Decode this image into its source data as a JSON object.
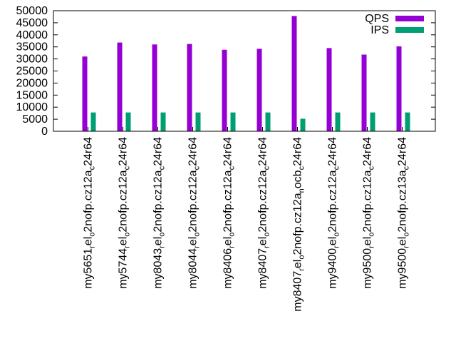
{
  "chart_data": {
    "type": "bar",
    "title": "",
    "xlabel": "",
    "ylabel": "",
    "ylim": [
      0,
      50000
    ],
    "yticks": [
      0,
      5000,
      10000,
      15000,
      20000,
      25000,
      30000,
      35000,
      40000,
      45000,
      50000
    ],
    "ytick_labels": [
      "0",
      "5000",
      "10000",
      "15000",
      "20000",
      "25000",
      "30000",
      "35000",
      "40000",
      "45000",
      "50000"
    ],
    "legend_position": "top-right",
    "categories": [
      [
        {
          "t": "my5651"
        },
        {
          "t": "r",
          "sub": true
        },
        {
          "t": "el"
        },
        {
          "t": "o",
          "sub": true
        },
        {
          "t": "2nofp.cz12a"
        },
        {
          "t": "c",
          "sub": true
        },
        {
          "t": "24r64"
        }
      ],
      [
        {
          "t": "my5744"
        },
        {
          "t": "r",
          "sub": true
        },
        {
          "t": "el"
        },
        {
          "t": "o",
          "sub": true
        },
        {
          "t": "2nofp.cz12a"
        },
        {
          "t": "c",
          "sub": true
        },
        {
          "t": "24r64"
        }
      ],
      [
        {
          "t": "my8043"
        },
        {
          "t": "r",
          "sub": true
        },
        {
          "t": "el"
        },
        {
          "t": "o",
          "sub": true
        },
        {
          "t": "2nofp.cz12a"
        },
        {
          "t": "c",
          "sub": true
        },
        {
          "t": "24r64"
        }
      ],
      [
        {
          "t": "my8044"
        },
        {
          "t": "r",
          "sub": true
        },
        {
          "t": "el"
        },
        {
          "t": "o",
          "sub": true
        },
        {
          "t": "2nofp.cz12a"
        },
        {
          "t": "c",
          "sub": true
        },
        {
          "t": "24r64"
        }
      ],
      [
        {
          "t": "my8406"
        },
        {
          "t": "r",
          "sub": true
        },
        {
          "t": "el"
        },
        {
          "t": "o",
          "sub": true
        },
        {
          "t": "2nofp.cz12a"
        },
        {
          "t": "c",
          "sub": true
        },
        {
          "t": "24r64"
        }
      ],
      [
        {
          "t": "my8407"
        },
        {
          "t": "r",
          "sub": true
        },
        {
          "t": "el"
        },
        {
          "t": "o",
          "sub": true
        },
        {
          "t": "2nofp.cz12a"
        },
        {
          "t": "c",
          "sub": true
        },
        {
          "t": "24r64"
        }
      ],
      [
        {
          "t": "my8407"
        },
        {
          "t": "r",
          "sub": true
        },
        {
          "t": "el"
        },
        {
          "t": "o",
          "sub": true
        },
        {
          "t": "2nofp.cz12a"
        },
        {
          "t": "n",
          "sub": true
        },
        {
          "t": "ocb"
        },
        {
          "t": "c",
          "sub": true
        },
        {
          "t": "24r64"
        }
      ],
      [
        {
          "t": "my9400"
        },
        {
          "t": "r",
          "sub": true
        },
        {
          "t": "el"
        },
        {
          "t": "o",
          "sub": true
        },
        {
          "t": "2nofp.cz12a"
        },
        {
          "t": "c",
          "sub": true
        },
        {
          "t": "24r64"
        }
      ],
      [
        {
          "t": "my9500"
        },
        {
          "t": "r",
          "sub": true
        },
        {
          "t": "el"
        },
        {
          "t": "o",
          "sub": true
        },
        {
          "t": "2nofp.cz12a"
        },
        {
          "t": "c",
          "sub": true
        },
        {
          "t": "24r64"
        }
      ],
      [
        {
          "t": "my9500"
        },
        {
          "t": "r",
          "sub": true
        },
        {
          "t": "el"
        },
        {
          "t": "o",
          "sub": true
        },
        {
          "t": "2nofp.cz13a"
        },
        {
          "t": "c",
          "sub": true
        },
        {
          "t": "24r64"
        }
      ]
    ],
    "series": [
      {
        "name": "QPS",
        "color": "#9400d3",
        "values": [
          31000,
          36800,
          36000,
          36200,
          33800,
          34200,
          47800,
          34500,
          31800,
          35200
        ]
      },
      {
        "name": "IPS",
        "color": "#009e73",
        "values": [
          7800,
          7800,
          7800,
          7800,
          7800,
          7800,
          5200,
          7800,
          7800,
          7800
        ]
      }
    ]
  }
}
